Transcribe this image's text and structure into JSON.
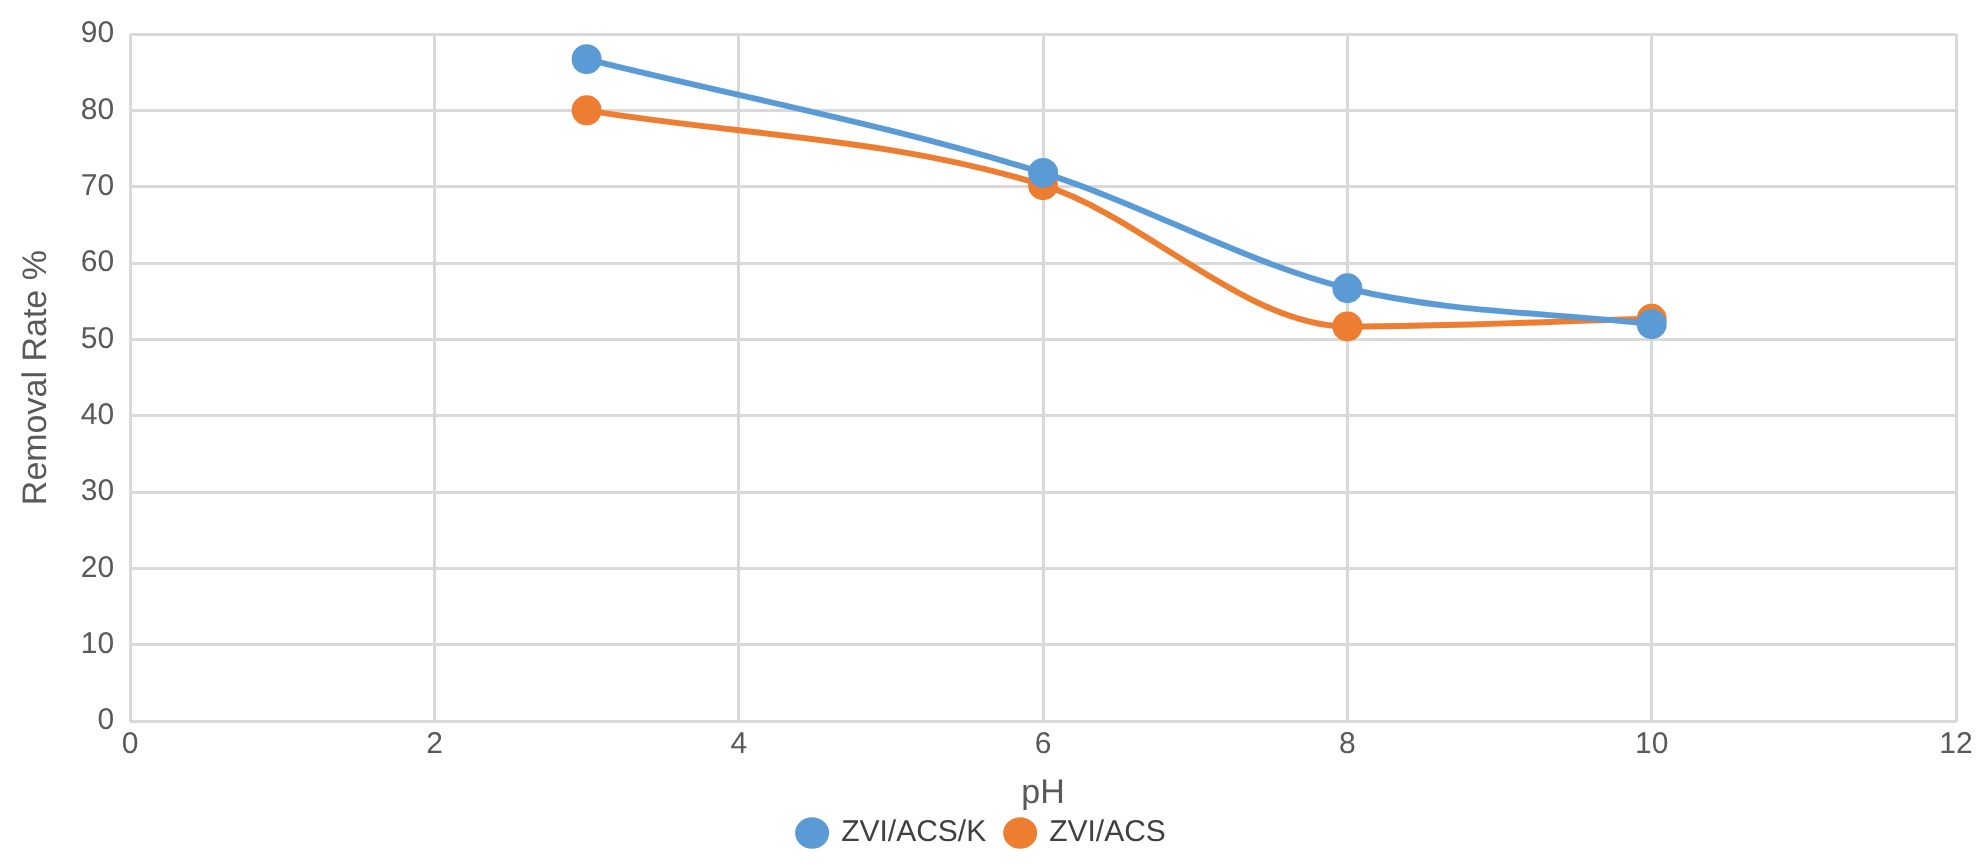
{
  "chart_data": {
    "type": "line",
    "xlabel": "pH",
    "ylabel": "Removal Rate %",
    "x": [
      3,
      6,
      8,
      10
    ],
    "series": [
      {
        "name": "ZVI/ACS/K",
        "color": "#5b9bd5",
        "values": [
          86.7,
          71.8,
          56.7,
          52.0
        ]
      },
      {
        "name": "ZVI/ACS",
        "color": "#ed7d31",
        "values": [
          80.0,
          70.2,
          51.7,
          52.7
        ]
      }
    ],
    "xlim": [
      0,
      12
    ],
    "xticks": [
      0,
      2,
      4,
      6,
      8,
      10,
      12
    ],
    "ylim": [
      0,
      90
    ],
    "yticks": [
      0,
      10,
      20,
      30,
      40,
      50,
      60,
      70,
      80,
      90
    ],
    "grid": true,
    "legend": "bottom",
    "marker": "circle",
    "line_style": "solid"
  }
}
